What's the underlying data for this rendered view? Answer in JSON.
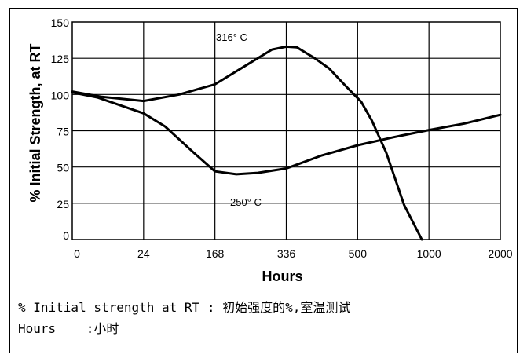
{
  "chart_data": {
    "type": "line",
    "xlabel": "Hours",
    "ylabel": "% Initial Strength, at RT",
    "x_ticks": [
      "0",
      "24",
      "168",
      "336",
      "500",
      "1000",
      "2000"
    ],
    "y_ticks": [
      "0",
      "25",
      "50",
      "75",
      "100",
      "125",
      "150"
    ],
    "ylim": [
      0,
      150
    ],
    "grid": true,
    "series": [
      {
        "name": "316° C",
        "points": [
          {
            "x": 0,
            "y": 102
          },
          {
            "x": 24,
            "y": 96
          },
          {
            "x": "24-168 midpoint",
            "y": 100
          }
        ]
      }
    ],
    "annotations": [
      "316° C",
      "250° C"
    ]
  },
  "caption": {
    "line1": "% Initial strength at RT : 初始强度的%,室温测试",
    "line2": "Hours    :小时"
  }
}
